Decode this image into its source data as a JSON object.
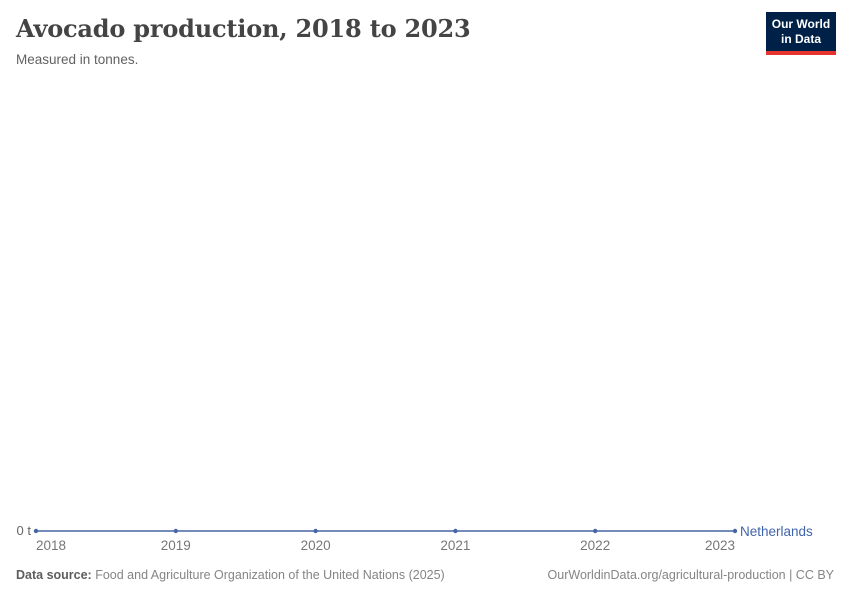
{
  "header": {
    "title": "Avocado production, 2018 to 2023",
    "subtitle": "Measured in tonnes."
  },
  "logo": {
    "line1": "Our World",
    "line2": "in Data",
    "bg_color": "#002147",
    "accent_color": "#e5332d"
  },
  "chart_data": {
    "type": "line",
    "title": "Avocado production, 2018 to 2023",
    "subtitle": "Measured in tonnes.",
    "unit": "tonnes",
    "x": [
      2018,
      2019,
      2020,
      2021,
      2022,
      2023
    ],
    "series": [
      {
        "name": "Netherlands",
        "values": [
          0,
          0,
          0,
          0,
          0,
          0
        ],
        "color": "#4666a5"
      }
    ],
    "xlabel": "",
    "ylabel": "",
    "ylim": [
      0,
      0
    ],
    "ytick_labels": [
      "0 t"
    ],
    "grid": false,
    "legend_position": "right-of-line-end",
    "marker": "dot"
  },
  "axis": {
    "y_zero_label": "0 t",
    "entity_label": "Netherlands"
  },
  "footer": {
    "source_label": "Data source:",
    "source_text": " Food and Agriculture Organization of the United Nations (2025)",
    "right_text": "OurWorldinData.org/agricultural-production | CC BY"
  }
}
